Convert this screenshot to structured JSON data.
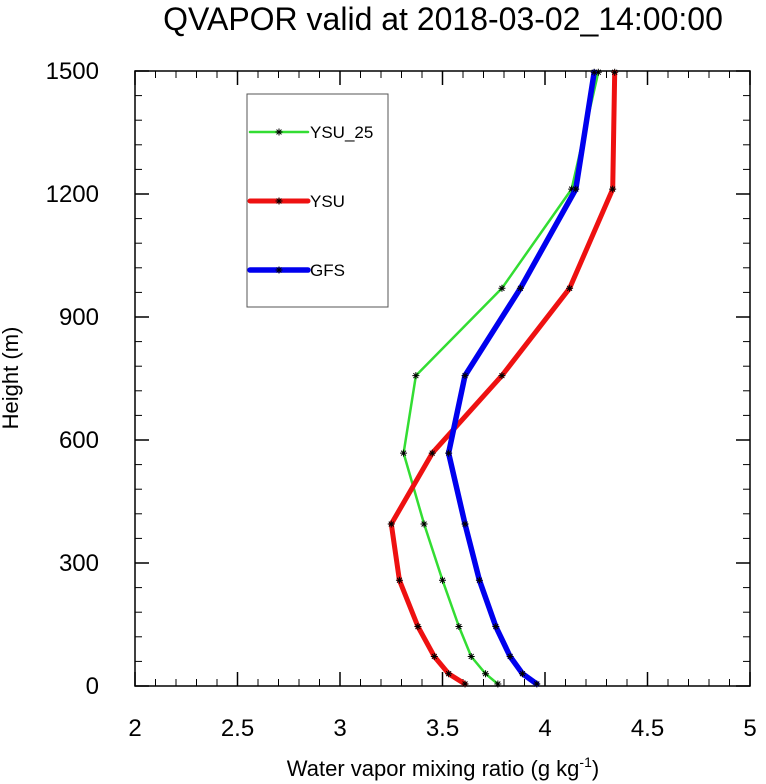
{
  "chart_data": {
    "type": "line",
    "title": "QVAPOR valid at 2018-03-02_14:00:00",
    "xlabel": "Water vapor mixing ratio (g kg",
    "xlabel_sup": "-1",
    "xlabel_end": ")",
    "ylabel": "Height (m)",
    "xlim": [
      2,
      5
    ],
    "ylim": [
      0,
      1500
    ],
    "xticks": [
      2,
      2.5,
      3,
      3.5,
      4,
      4.5,
      5
    ],
    "yticks": [
      0,
      300,
      600,
      900,
      1200,
      1500
    ],
    "xtick_labels": [
      "2",
      "2.5",
      "3",
      "3.5",
      "4",
      "4.5",
      "5"
    ],
    "ytick_labels": [
      "0",
      "300",
      "600",
      "900",
      "1200",
      "1500"
    ],
    "grid": false,
    "legend_position": "top-left",
    "series": [
      {
        "name": "YSU_25",
        "color": "#33dd33",
        "x": [
          3.77,
          3.71,
          3.64,
          3.58,
          3.5,
          3.41,
          3.31,
          3.37,
          3.79,
          4.13,
          4.26
        ],
        "y": [
          5,
          30,
          72,
          145,
          258,
          395,
          568,
          757,
          970,
          1212,
          1497
        ]
      },
      {
        "name": "YSU",
        "color": "#ee1111",
        "x": [
          3.61,
          3.53,
          3.46,
          3.38,
          3.29,
          3.25,
          3.45,
          3.79,
          4.12,
          4.33,
          4.34
        ],
        "y": [
          5,
          30,
          72,
          145,
          258,
          395,
          568,
          757,
          970,
          1212,
          1497
        ]
      },
      {
        "name": "GFS",
        "color": "#0000ee",
        "x": [
          3.96,
          3.89,
          3.83,
          3.76,
          3.68,
          3.61,
          3.53,
          3.61,
          3.88,
          4.15,
          4.24
        ],
        "y": [
          5,
          30,
          72,
          145,
          258,
          395,
          568,
          757,
          970,
          1212,
          1497
        ]
      }
    ]
  }
}
